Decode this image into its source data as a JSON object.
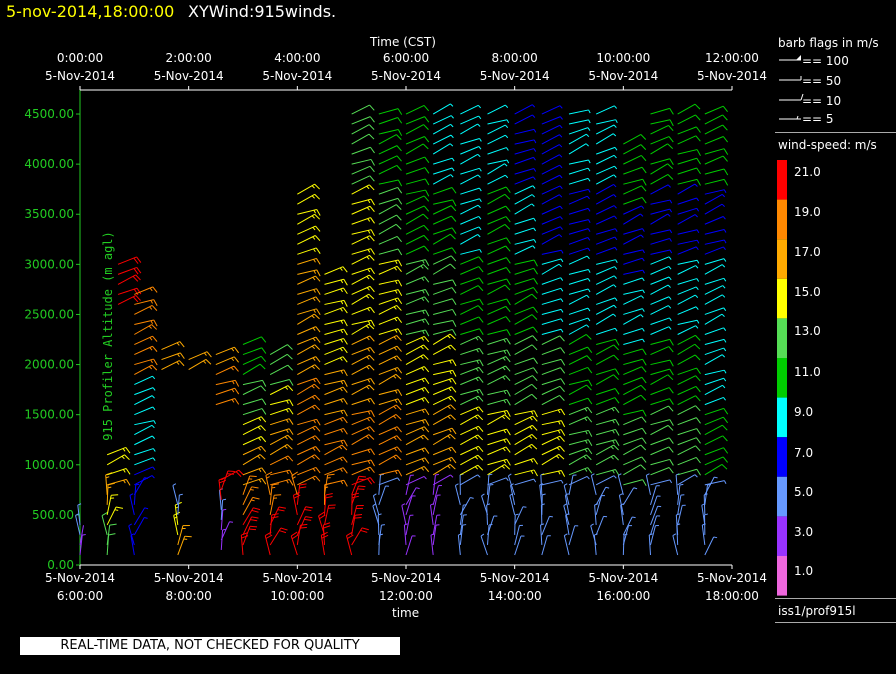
{
  "header": {
    "datetime": "5-nov-2014,18:00:00",
    "title": "XYWind:915winds.",
    "datetime_color": "#ffff00"
  },
  "legend": {
    "barb_title": "barb flags in m/s",
    "barb_items": [
      "== 100",
      "== 50",
      "== 10",
      "== 5"
    ],
    "speed_title": "wind-speed: m/s",
    "speed_labels": [
      "21.0",
      "19.0",
      "17.0",
      "15.0",
      "13.0",
      "11.0",
      "9.0",
      "7.0",
      "5.0",
      "3.0",
      "1.0"
    ],
    "speed_colors": [
      "#ff0000",
      "#ff8800",
      "#ffaa00",
      "#ffff00",
      "#55dd55",
      "#00cc00",
      "#00ffff",
      "#0000ff",
      "#6699ff",
      "#9933ff",
      "#ee66dd"
    ],
    "source": "iss1/prof915l"
  },
  "warning": "REAL-TIME DATA, NOT CHECKED FOR QUALITY",
  "chart_data": {
    "type": "wind-barb time-height",
    "x_top_title": "Time (CST)",
    "x_bottom_title": "time",
    "ylabel": "915 Profiler Altitude (m agl)",
    "ylim": [
      0,
      4600
    ],
    "y_ticks": [
      "0.00",
      "500.00",
      "1000.00",
      "1500.00",
      "2000.00",
      "2500.00",
      "3000.00",
      "3500.00",
      "4000.00",
      "4500.00"
    ],
    "x_top_ticks": [
      {
        "time": "0:00:00",
        "date": "5-Nov-2014"
      },
      {
        "time": "2:00:00",
        "date": "5-Nov-2014"
      },
      {
        "time": "4:00:00",
        "date": "5-Nov-2014"
      },
      {
        "time": "6:00:00",
        "date": "5-Nov-2014"
      },
      {
        "time": "8:00:00",
        "date": "5-Nov-2014"
      },
      {
        "time": "10:00:00",
        "date": "5-Nov-2014"
      },
      {
        "time": "12:00:00",
        "date": "5-Nov-2014"
      }
    ],
    "x_bottom_ticks": [
      {
        "date": "5-Nov-2014",
        "time": "6:00:00"
      },
      {
        "date": "5-Nov-2014",
        "time": "8:00:00"
      },
      {
        "date": "5-Nov-2014",
        "time": "10:00:00"
      },
      {
        "date": "5-Nov-2014",
        "time": "12:00:00"
      },
      {
        "date": "5-Nov-2014",
        "time": "14:00:00"
      },
      {
        "date": "5-Nov-2014",
        "time": "16:00:00"
      },
      {
        "date": "5-Nov-2014",
        "time": "18:00:00"
      }
    ],
    "xlim_hours_utc": [
      6,
      18
    ],
    "profiles": [
      {
        "t": 6.0,
        "start": 100,
        "end": 450,
        "speeds": [
          3,
          2,
          5
        ]
      },
      {
        "t": 6.5,
        "start": 100,
        "end": 1150,
        "speeds": [
          12,
          15,
          16,
          15
        ]
      },
      {
        "t": 6.7,
        "start": 2600,
        "end": 3000,
        "speeds": [
          21,
          21,
          20
        ]
      },
      {
        "t": 7.0,
        "start": 100,
        "end": 2700,
        "speeds": [
          6,
          8,
          19
        ]
      },
      {
        "t": 7.5,
        "start": 1950,
        "end": 2200,
        "speeds": [
          17,
          16
        ]
      },
      {
        "t": 7.8,
        "start": 100,
        "end": 650,
        "speeds": [
          16,
          15,
          4
        ]
      },
      {
        "t": 8.0,
        "start": 1950,
        "end": 2050,
        "speeds": [
          17
        ]
      },
      {
        "t": 8.5,
        "start": 1600,
        "end": 2100,
        "speeds": [
          18,
          19,
          17
        ]
      },
      {
        "t": 8.6,
        "start": 150,
        "end": 850,
        "speeds": [
          3,
          5,
          20
        ]
      },
      {
        "t": 9.0,
        "start": 100,
        "end": 2200,
        "speeds": [
          20,
          19,
          16,
          14,
          12,
          11
        ]
      },
      {
        "t": 9.5,
        "start": 100,
        "end": 2150,
        "speeds": [
          20,
          19,
          18,
          16,
          14,
          12
        ]
      },
      {
        "t": 10.0,
        "start": 100,
        "end": 3700,
        "speeds": [
          20,
          19,
          18,
          17,
          16,
          15
        ]
      },
      {
        "t": 10.5,
        "start": 100,
        "end": 2900,
        "speeds": [
          20,
          19,
          18,
          16,
          15,
          14
        ]
      },
      {
        "t": 11.0,
        "start": 100,
        "end": 4500,
        "speeds": [
          20,
          19,
          17,
          15,
          14,
          12
        ]
      },
      {
        "t": 11.5,
        "start": 100,
        "end": 4550,
        "speeds": [
          5,
          18,
          16,
          14,
          12,
          11
        ]
      },
      {
        "t": 12.0,
        "start": 100,
        "end": 4550,
        "speeds": [
          3,
          17,
          15,
          13,
          11,
          10
        ]
      },
      {
        "t": 12.5,
        "start": 100,
        "end": 4550,
        "speeds": [
          3,
          16,
          14,
          12,
          10,
          9
        ]
      },
      {
        "t": 13.0,
        "start": 100,
        "end": 4550,
        "speeds": [
          4,
          15,
          13,
          11,
          9,
          8
        ]
      },
      {
        "t": 13.5,
        "start": 100,
        "end": 4550,
        "speeds": [
          5,
          15,
          13,
          11,
          10,
          9
        ]
      },
      {
        "t": 14.0,
        "start": 100,
        "end": 4550,
        "speeds": [
          5,
          14,
          12,
          10,
          8,
          7
        ]
      },
      {
        "t": 14.5,
        "start": 100,
        "end": 4550,
        "speeds": [
          5,
          14,
          12,
          9,
          7,
          7
        ]
      },
      {
        "t": 15.0,
        "start": 100,
        "end": 4550,
        "speeds": [
          5,
          13,
          11,
          9,
          7,
          8
        ]
      },
      {
        "t": 15.5,
        "start": 100,
        "end": 4500,
        "speeds": [
          4,
          13,
          11,
          8,
          7,
          9
        ]
      },
      {
        "t": 16.0,
        "start": 100,
        "end": 4200,
        "speeds": [
          5,
          12,
          10,
          8,
          7,
          10
        ]
      },
      {
        "t": 16.5,
        "start": 100,
        "end": 4550,
        "speeds": [
          5,
          12,
          10,
          8,
          7,
          11
        ]
      },
      {
        "t": 17.0,
        "start": 100,
        "end": 4550,
        "speeds": [
          5,
          12,
          10,
          8,
          7,
          11
        ]
      },
      {
        "t": 17.5,
        "start": 100,
        "end": 4550,
        "speeds": [
          4,
          11,
          9,
          8,
          7,
          11
        ]
      }
    ]
  }
}
